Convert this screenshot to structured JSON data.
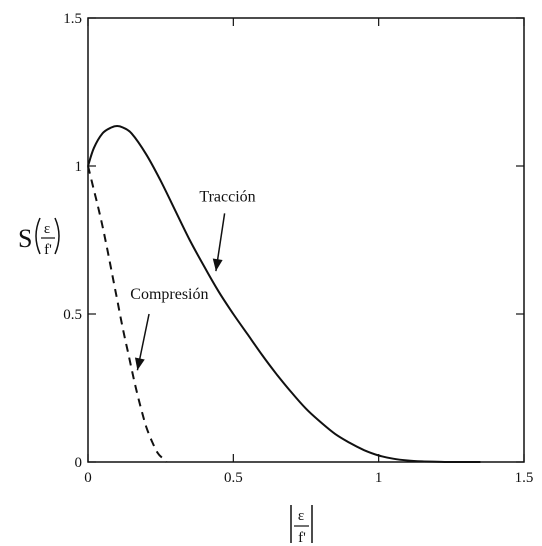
{
  "chart_data": {
    "type": "line",
    "title": "",
    "xlabel": {
      "numerator": "ε",
      "denominator": "f'"
    },
    "ylabel": {
      "prefix": "S",
      "numerator": "ε",
      "denominator": "f'"
    },
    "xlim": [
      0,
      1.5
    ],
    "ylim": [
      0,
      1.5
    ],
    "xticks": [
      0,
      0.5,
      1,
      1.5
    ],
    "yticks": [
      0,
      0.5,
      1,
      1.5
    ],
    "xtick_labels": [
      "0",
      "0.5",
      "1",
      "1.5"
    ],
    "ytick_labels": [
      "0",
      "0.5",
      "1",
      "1.5"
    ],
    "grid": false,
    "legend": "none",
    "series": [
      {
        "name": "Tracción",
        "style": "solid",
        "color": "#111111",
        "x": [
          0,
          0.02,
          0.05,
          0.08,
          0.1,
          0.12,
          0.15,
          0.2,
          0.25,
          0.3,
          0.35,
          0.4,
          0.45,
          0.5,
          0.55,
          0.6,
          0.65,
          0.7,
          0.75,
          0.8,
          0.85,
          0.9,
          0.95,
          1.0,
          1.05,
          1.1,
          1.15,
          1.2,
          1.25,
          1.3,
          1.35
        ],
        "y": [
          1.0,
          1.06,
          1.11,
          1.13,
          1.135,
          1.13,
          1.11,
          1.04,
          0.95,
          0.85,
          0.75,
          0.66,
          0.575,
          0.5,
          0.43,
          0.36,
          0.295,
          0.235,
          0.18,
          0.135,
          0.095,
          0.065,
          0.04,
          0.022,
          0.011,
          0.005,
          0.002,
          0.001,
          0.0,
          0.0,
          0.0
        ]
      },
      {
        "name": "Compresión",
        "style": "dashed",
        "color": "#111111",
        "x": [
          0,
          0.02,
          0.04,
          0.06,
          0.08,
          0.1,
          0.12,
          0.14,
          0.16,
          0.18,
          0.2,
          0.22,
          0.24,
          0.26,
          0.27
        ],
        "y": [
          1.0,
          0.92,
          0.84,
          0.75,
          0.65,
          0.55,
          0.45,
          0.36,
          0.27,
          0.19,
          0.12,
          0.07,
          0.03,
          0.01,
          0.0
        ]
      }
    ],
    "annotations": [
      {
        "text": "Tracción",
        "series": "Tracción",
        "label_at": [
          0.48,
          0.88
        ],
        "arrow_from": [
          0.47,
          0.84
        ],
        "arrow_to": [
          0.44,
          0.645
        ]
      },
      {
        "text": "Compresión",
        "series": "Compresión",
        "label_at": [
          0.28,
          0.55
        ],
        "arrow_from": [
          0.21,
          0.5
        ],
        "arrow_to": [
          0.17,
          0.31
        ]
      }
    ]
  }
}
